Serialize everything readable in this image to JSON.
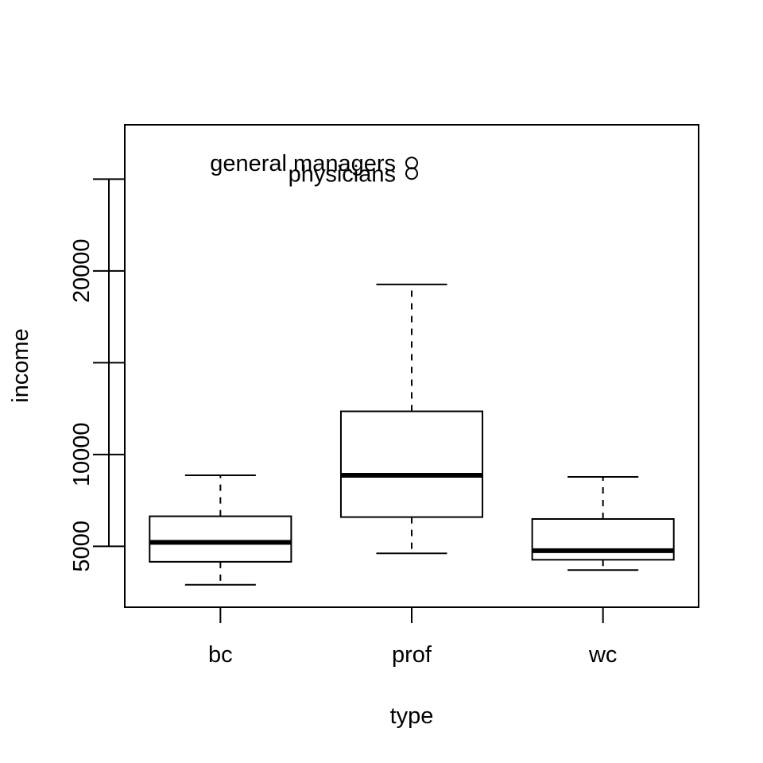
{
  "chart_data": {
    "type": "boxplot",
    "title": "",
    "xlabel": "type",
    "ylabel": "income",
    "categories": [
      "bc",
      "prof",
      "wc"
    ],
    "ylim": [
      1680,
      27960
    ],
    "yticks": [
      5000,
      10000,
      15000,
      20000,
      25000
    ],
    "ytick_labels": [
      "5000",
      "10000",
      "",
      "20000",
      ""
    ],
    "grid": false,
    "boxes": [
      {
        "category": "bc",
        "whisker_low": 2901,
        "q1": 4154,
        "median": 5216,
        "q3": 6634,
        "whisker_high": 8865
      },
      {
        "category": "prof",
        "whisker_low": 4614,
        "q1": 6590,
        "median": 8865,
        "q3": 12351,
        "whisker_high": 19263
      },
      {
        "category": "wc",
        "whisker_low": 3702,
        "q1": 4265,
        "median": 4761,
        "q3": 6486,
        "whisker_high": 8780
      }
    ],
    "outliers": [
      {
        "category": "prof",
        "value": 25879,
        "label": "general managers"
      },
      {
        "category": "prof",
        "value": 25308,
        "label": "physicians"
      }
    ]
  }
}
